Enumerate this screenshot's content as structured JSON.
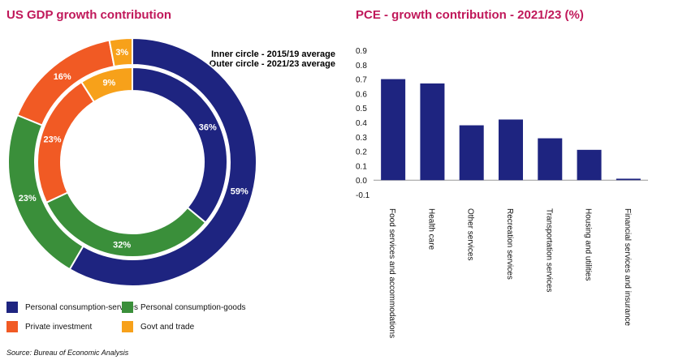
{
  "chart_data": [
    {
      "type": "pie",
      "title": "US GDP growth contribution",
      "notes": [
        "Inner circle - 2015/19 average",
        "Outer circle - 2021/23 average"
      ],
      "categories": [
        "Personal consumption-services",
        "Personal consumption-goods",
        "Private investment",
        "Govt and trade"
      ],
      "colors": [
        "#1e2480",
        "#3a8f3a",
        "#f15a24",
        "#f7a11a"
      ],
      "series": [
        {
          "name": "Inner circle - 2015/19 average",
          "values": [
            36,
            32,
            23,
            9
          ],
          "labels": [
            "36%",
            "32%",
            "23%",
            "9%"
          ]
        },
        {
          "name": "Outer circle - 2021/23 average",
          "values": [
            59,
            23,
            16,
            3
          ],
          "labels": [
            "59%",
            "23%",
            "16%",
            "3%"
          ]
        }
      ]
    },
    {
      "type": "bar",
      "title": "PCE - growth contribution - 2021/23 (%)",
      "categories": [
        "Food services and accommodations",
        "Health care",
        "Other services",
        "Recreation services",
        "Transportation services",
        "Housing and utilities",
        "Financial services and insurance"
      ],
      "values": [
        0.7,
        0.67,
        0.38,
        0.42,
        0.29,
        0.21,
        0.01
      ],
      "ylim": [
        -0.1,
        0.9
      ],
      "yticks": [
        "0.9",
        "0.8",
        "0.7",
        "0.6",
        "0.5",
        "0.4",
        "0.3",
        "0.2",
        "0.1",
        "0.0",
        "-0.1"
      ],
      "color": "#1e2480"
    }
  ],
  "legend": [
    {
      "label": "Personal consumption-services",
      "color": "#1e2480"
    },
    {
      "label": "Personal consumption-goods",
      "color": "#3a8f3a"
    },
    {
      "label": "Private investment",
      "color": "#f15a24"
    },
    {
      "label": "Govt and trade",
      "color": "#f7a11a"
    }
  ],
  "source": "Source: Bureau of Economic Analysis"
}
